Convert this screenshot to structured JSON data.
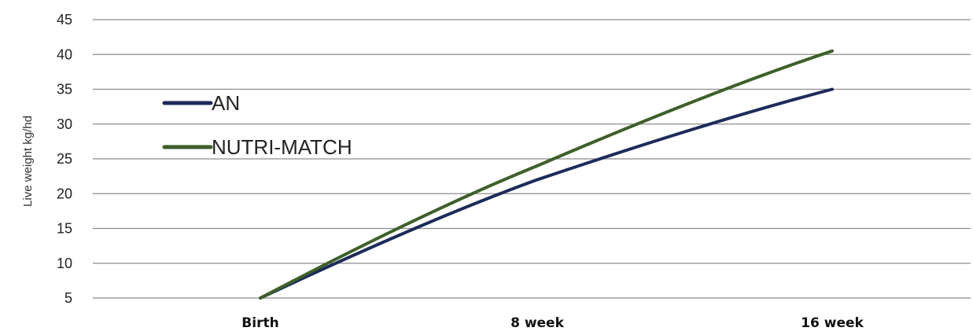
{
  "chart_data": {
    "type": "line",
    "title": "",
    "xlabel": "",
    "ylabel": "Live weight kg/hd",
    "categories": [
      "Birth",
      "8 week",
      "16 week"
    ],
    "series": [
      {
        "name": "AN",
        "values": [
          5,
          22,
          35
        ],
        "color": "#1c2b5a"
      },
      {
        "name": "NUTRI-MATCH",
        "values": [
          5,
          24,
          40.5
        ],
        "color": "#3e5f2a"
      }
    ],
    "ylim": [
      5,
      45
    ],
    "yticks": [
      5,
      10,
      15,
      20,
      25,
      30,
      35,
      40,
      45
    ],
    "grid": true,
    "legend_position": "left"
  }
}
